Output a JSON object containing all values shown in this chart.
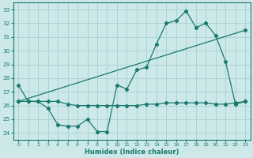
{
  "xlabel": "Humidex (Indice chaleur)",
  "background_color": "#cce8e8",
  "grid_color": "#aad4d4",
  "line_color": "#1a7a6e",
  "xlim": [
    -0.5,
    23.5
  ],
  "ylim": [
    23.5,
    33.5
  ],
  "xticks": [
    0,
    1,
    2,
    3,
    4,
    5,
    6,
    7,
    8,
    9,
    10,
    11,
    12,
    13,
    14,
    15,
    16,
    17,
    18,
    19,
    20,
    21,
    22,
    23
  ],
  "yticks": [
    24,
    25,
    26,
    27,
    28,
    29,
    30,
    31,
    32,
    33
  ],
  "line1_x": [
    0,
    1,
    2,
    3,
    4,
    5,
    6,
    7,
    8,
    9,
    10,
    11,
    12,
    13,
    14,
    15,
    16,
    17,
    18,
    19,
    20,
    21,
    22,
    23
  ],
  "line1_y": [
    27.5,
    26.3,
    26.3,
    25.8,
    24.6,
    24.5,
    24.5,
    25.0,
    24.1,
    24.1,
    27.5,
    27.2,
    28.6,
    28.8,
    30.5,
    32.0,
    32.2,
    32.9,
    31.7,
    32.0,
    31.1,
    29.2,
    26.1,
    26.3
  ],
  "line2_x": [
    0,
    1,
    2,
    3,
    4,
    5,
    6,
    7,
    8,
    9,
    10,
    11,
    12,
    13,
    14,
    15,
    16,
    17,
    18,
    19,
    20,
    21,
    22,
    23
  ],
  "line2_y": [
    26.3,
    26.3,
    26.3,
    26.3,
    26.3,
    26.1,
    26.0,
    26.0,
    26.0,
    26.0,
    26.0,
    26.0,
    26.0,
    26.1,
    26.1,
    26.2,
    26.2,
    26.2,
    26.2,
    26.2,
    26.1,
    26.1,
    26.2,
    26.3
  ],
  "line3_x": [
    0,
    23
  ],
  "line3_y": [
    26.3,
    31.5
  ]
}
